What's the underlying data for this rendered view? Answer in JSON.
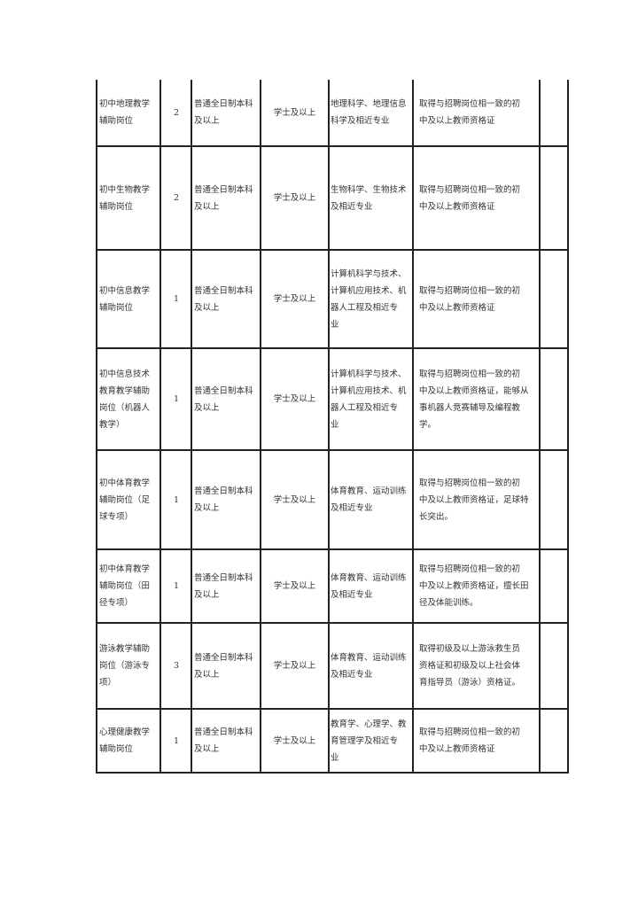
{
  "rows": [
    {
      "position": "初中地理教学\n    辅助岗位",
      "count": "2",
      "education": "普通全日制本科\n        及以上",
      "degree": "学士及以上",
      "major": "地理科学、地理信息\n    科学及相近专业",
      "certificate": "取得与招聘岗位相一致的初\n      中及以上教师资格证",
      "remarks": ""
    },
    {
      "position": "初中生物教学\n    辅助岗位",
      "count": "2",
      "education": "普通全日制本科\n        及以上",
      "degree": "学士及以上",
      "major": "  生物科学、生物技术\n        及相近专业",
      "certificate": "取得与招聘岗位相一致的初\n      中及以上教师资格证",
      "remarks": ""
    },
    {
      "position": "  初中信息教学\n    辅助岗位",
      "count": "1",
      "education": "普通全日制本科\n        及以上",
      "degree": "学士及以上",
      "major": "计算机科学与技术、\n计算机应用技术、机\n  器人工程及相近专\n           业",
      "certificate": "取得与招聘岗位相一致的初\n      中及以上教师资格证",
      "remarks": ""
    },
    {
      "position": "初中信息技术\n教育教学辅助\n岗位（机器人\n    教学）",
      "count": "1",
      "education": "普通全日制本科\n        及以上",
      "degree": "学士及以上",
      "major": "计算机科学与技术、\n计算机应用技术、机\n器人工程及相近专\n           业",
      "certificate": "取得与招聘岗位相一致的初\n中及以上教师资格证，能够从\n事机器人竞赛辅导及编程教\n           学。",
      "remarks": ""
    },
    {
      "position": "初中体育教学\n辅助岗位（足\n  球专项）",
      "count": "1",
      "education": "  普通全日制本科\n         及以上",
      "degree": "学士及以上",
      "major": "  体育教育、运动训练\n        及相近专业",
      "certificate": "  取得与招聘岗位相一致的初\n  中及以上教师资格证，足球特\n            长突出。",
      "remarks": ""
    },
    {
      "position": "初中体育教学\n辅助岗位（田\n  径专项）",
      "count": "1",
      "education": "  普通全日制本科\n         及以上",
      "degree": "学士及以上",
      "major": "  体育教育、运动训练\n        及相近专业",
      "certificate": "  取得与招聘岗位相一致的初\n  中及以上教师资格证，擅长田\n         径及体能训练。",
      "remarks": ""
    },
    {
      "position": "游泳教学辅助\n岗位（游泳专\n    项）",
      "count": "3",
      "education": "  普通全日制本科\n         及以上",
      "degree": "学士及以上",
      "major": "  体育教育、运动训练\n        及相近专业",
      "certificate": "  取得初级及以上游泳救生员\n  资格证和初级及以上社会体\n  育指导员（游泳）资格证。",
      "remarks": ""
    },
    {
      "position": "  心理健康教学\n    辅助岗位",
      "count": "1",
      "education": "普通全日制本科\n        及以上",
      "degree": "学士及以上",
      "major": "  教育学、心理学、教\n  育管理学及相近专\n           业",
      "certificate": "取得与招聘岗位相一致的初\n      中及以上教师资格证",
      "remarks": ""
    }
  ]
}
